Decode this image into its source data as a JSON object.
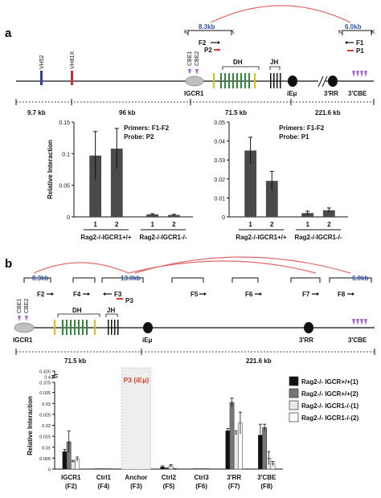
{
  "panel_a": {
    "label": "a",
    "kb_top": "8.3kb",
    "kb_top_right": "6.0kb",
    "K": "K",
    "primer_F2": "F2",
    "probe_P2": "P2",
    "primer_F1": "F1",
    "probe_P1": "P1",
    "vh1": "VH52",
    "vh2": "VH81X",
    "cbe1": "CBE1",
    "cbe2": "CBE2",
    "dh": "DH",
    "jh": "JH",
    "igcr1": "IGCR1",
    "iemu": "iEμ",
    "rr": "3'RR",
    "cbe3": "3'CBE",
    "dist": [
      "9.7 kb",
      "96 kb",
      "71.5 kb",
      "221.6 kb"
    ],
    "colors": {
      "vh1": "#2e3fa8",
      "vh2": "#d62b2b",
      "cbe": "#a56bc8",
      "dh": "#2e8b3a",
      "jh_start": "#d8c21a",
      "arc": "#e06a6a",
      "kb": "#2f52b0",
      "probe": "#e03a2a",
      "bar": "#4a4a4a"
    }
  },
  "chart_data": [
    {
      "type": "bar",
      "ylabel": "Relative Interaction",
      "yticks": [
        "0",
        "0.05",
        "0.1",
        "0.15"
      ],
      "ylim": [
        0,
        0.15
      ],
      "primers": "Primers: F1-F2",
      "probe": "Probe:    P2",
      "categories": [
        "1",
        "2",
        "1",
        "2"
      ],
      "groups": [
        "Rag2-/-IGCR1+/+",
        "Rag2-/-IGCR1-/-"
      ],
      "values": [
        0.097,
        0.108,
        0.004,
        0.003
      ],
      "errors": [
        0.038,
        0.032,
        0.001,
        0.001
      ]
    },
    {
      "type": "bar",
      "ylabel": "",
      "yticks": [
        "0",
        "0.01",
        "0.02",
        "0.03",
        "0.04",
        "0.05"
      ],
      "ylim": [
        0,
        0.05
      ],
      "primers": "Primers: F1-F2",
      "probe": "Probe:    P1",
      "categories": [
        "1",
        "2",
        "1",
        "2"
      ],
      "groups": [
        "Rag2-/-IGCR1+/+",
        "Rag2-/-IGCR1-/-"
      ],
      "values": [
        0.035,
        0.019,
        0.002,
        0.0035
      ],
      "errors": [
        0.007,
        0.005,
        0.001,
        0.0012
      ]
    },
    {
      "type": "bar",
      "ylabel": "Relative Interaction",
      "yticks_upper": [
        "0.375",
        "0.4",
        "0.425"
      ],
      "yticks_lower": [
        "0",
        "0.005",
        "0.01",
        "0.015",
        "0.02",
        "0.025",
        "0.03",
        "0.035",
        "0.04"
      ],
      "categories": [
        "IGCR1\n(F2)",
        "Ctrl1\n(F4)",
        "Anchor\n(F3)",
        "Ctrl2\n(F5)",
        "Ctrl3\n(F6)",
        "3'RR\n(F7)",
        "3'CBE\n(F8)"
      ],
      "series": [
        {
          "name": "Rag2-/- IGCR+/+(1)",
          "color": "#111111",
          "values": [
            0.008,
            0.0002,
            null,
            0.001,
            0.0002,
            0.0175,
            0.0155
          ],
          "errors": [
            0.001,
            0,
            null,
            0.0005,
            0,
            0.001,
            0.005
          ]
        },
        {
          "name": "Rag2-/- IGCR+/+(2)",
          "color": "#777777",
          "values": [
            0.0125,
            0.0002,
            null,
            0.0003,
            0.0002,
            0.0305,
            0.019
          ],
          "errors": [
            0.005,
            0,
            null,
            0.0002,
            0,
            0.002,
            0.0015
          ]
        },
        {
          "name": "Rag2-/- IGCR1-/-(1)",
          "color": "#e8e8e8",
          "values": [
            0.0035,
            0.0002,
            null,
            0.0015,
            0.0002,
            0.0165,
            0.005
          ],
          "errors": [
            0.0005,
            0,
            null,
            0.0005,
            0,
            0.001,
            0.003
          ]
        },
        {
          "name": "Rag2-/- IGCR1-/-(2)",
          "color": "#ffffff",
          "values": [
            0.0045,
            0.0002,
            null,
            0.0001,
            0.0002,
            0.021,
            0.0025
          ],
          "errors": [
            0.001,
            0,
            null,
            0.0001,
            0,
            0.005,
            0.001
          ]
        }
      ],
      "anchor_label": "P3 (iEμ)"
    }
  ],
  "panel_b": {
    "label": "b",
    "kb_left": "8.3kb",
    "kb_mid": "13.0kb",
    "kb_right": "6.0kb",
    "primers": [
      "F2",
      "F4",
      "F3",
      "F5",
      "F6",
      "F7",
      "F8"
    ],
    "probe_P3": "P3",
    "dist": [
      "71.5 kb",
      "221.6 kb"
    ]
  }
}
